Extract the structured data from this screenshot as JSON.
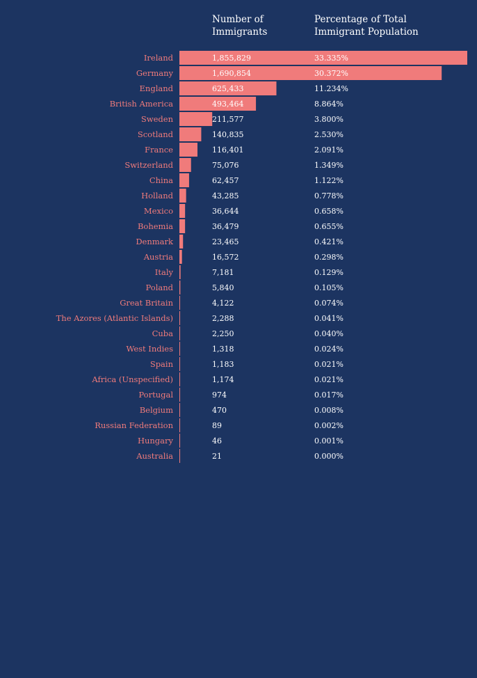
{
  "headers": {
    "count": "Number of Immigrants",
    "percent": "Percentage of Total Immigrant Population"
  },
  "colors": {
    "background": "#1c3461",
    "bar": "#f07b7b",
    "text": "#ffffff",
    "country_label": "#f07b7b"
  },
  "chart_data": {
    "type": "bar",
    "orientation": "horizontal",
    "title": "",
    "xlabel": "",
    "ylabel": "",
    "categories": [
      "Ireland",
      "Germany",
      "England",
      "British America",
      "Sweden",
      "Scotland",
      "France",
      "Switzerland",
      "China",
      "Holland",
      "Mexico",
      "Bohemia",
      "Denmark",
      "Austria",
      "Italy",
      "Poland",
      "Great Britain",
      "The Azores (Atlantic Islands)",
      "Cuba",
      "West Indies",
      "Spain",
      "Africa (Unspecified)",
      "Portugal",
      "Belgium",
      "Russian Federation",
      "Hungary",
      "Australia"
    ],
    "series": [
      {
        "values": [
          1855829,
          1690854,
          625433,
          493464,
          211577,
          140835,
          116401,
          75076,
          62457,
          43285,
          36644,
          36479,
          23465,
          16572,
          7181,
          5840,
          4122,
          2288,
          2250,
          1318,
          1183,
          1174,
          974,
          470,
          89,
          46,
          21
        ]
      }
    ],
    "value_labels": [
      "1,855,829",
      "1,690,854",
      "625,433",
      "493,464",
      "211,577",
      "140,835",
      "116,401",
      "75,076",
      "62,457",
      "43,285",
      "36,644",
      "36,479",
      "23,465",
      "16,572",
      "7,181",
      "5,840",
      "4,122",
      "2,288",
      "2,250",
      "1,318",
      "1,183",
      "1,174",
      "974",
      "470",
      "89",
      "46",
      "21"
    ],
    "percent_labels": [
      "33.335%",
      "30.372%",
      "11.234%",
      "8.864%",
      "3.800%",
      "2.530%",
      "2.091%",
      "1.349%",
      "1.122%",
      "0.778%",
      "0.658%",
      "0.655%",
      "0.421%",
      "0.298%",
      "0.129%",
      "0.105%",
      "0.074%",
      "0.041%",
      "0.040%",
      "0.024%",
      "0.021%",
      "0.021%",
      "0.017%",
      "0.008%",
      "0.002%",
      "0.001%",
      "0.000%"
    ],
    "xlim": [
      0,
      1855829
    ],
    "grid": false,
    "legend": "none"
  }
}
